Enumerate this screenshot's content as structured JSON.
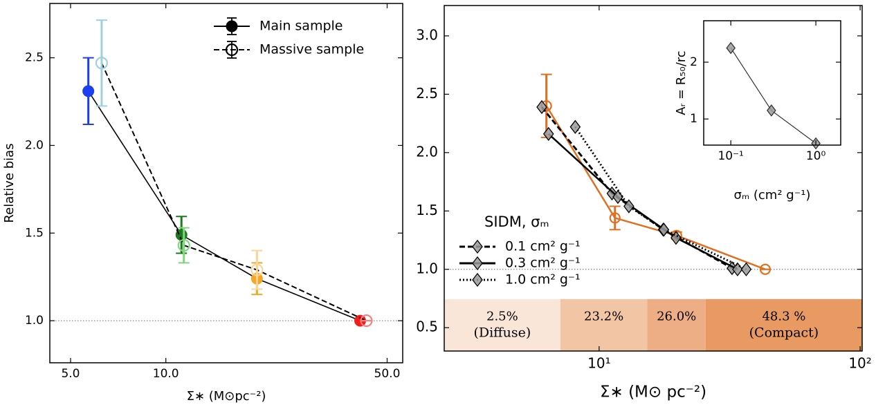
{
  "chart_data": [
    {
      "type": "scatter",
      "x_label": "Σ∗ (M⊙pc⁻²)",
      "y_label": "Relative bias",
      "xscale": "log",
      "xlim": [
        4.3,
        56
      ],
      "ylim": [
        0.76,
        2.81
      ],
      "xticks": [
        {
          "value": 5,
          "label": "5.0"
        },
        {
          "value": 10,
          "label": "10.0"
        },
        {
          "value": 50,
          "label": "50.0"
        }
      ],
      "yticks": [
        {
          "value": 1,
          "label": "1.0"
        },
        {
          "value": 1.5,
          "label": "1.5"
        },
        {
          "value": 2,
          "label": "2.0"
        },
        {
          "value": 2.5,
          "label": "2.5"
        }
      ],
      "reference_line": 1.0,
      "legend": "upper right",
      "series": [
        {
          "name": "Main sample",
          "color": "#000000",
          "linestyle": "solid",
          "marker": "filled-circle",
          "x": [
            5.69,
            11.2,
            19.4,
            41.1
          ],
          "values": [
            2.31,
            1.49,
            1.24,
            1.0
          ],
          "errors": [
            0.19,
            0.105,
            0.09,
            0
          ],
          "point_colors": [
            "#1c3ff0",
            "#1e7a1e",
            "#f5a623",
            "#f21d1d"
          ]
        },
        {
          "name": "Massive sample",
          "color": "#000000",
          "linestyle": "dashed",
          "marker": "open-circle",
          "x": [
            6.27,
            11.4,
            19.4,
            43.0
          ],
          "values": [
            2.47,
            1.43,
            1.29,
            1.0
          ],
          "errors": [
            0.245,
            0.1,
            0.11,
            0
          ],
          "point_colors": [
            "#9fd0e2",
            "#7fd67f",
            "#fbd49a",
            "#f58080"
          ]
        }
      ]
    },
    {
      "type": "scatter",
      "x_label": "Σ∗ (M⊙ pc⁻²)",
      "xscale": "log",
      "xlim": [
        2.55,
        101.8
      ],
      "ylim": [
        0.3,
        3.26
      ],
      "xticks": [
        {
          "value": 10,
          "label": "10¹"
        },
        {
          "value": 100,
          "label": "10²"
        }
      ],
      "yticks": [
        {
          "value": 0.5,
          "label": "0.5"
        },
        {
          "value": 1,
          "label": "1.0"
        },
        {
          "value": 1.5,
          "label": "1.5"
        },
        {
          "value": 2,
          "label": "2.0"
        },
        {
          "value": 2.5,
          "label": "2.5"
        },
        {
          "value": 3,
          "label": "3.0"
        }
      ],
      "reference_line": 1.0,
      "legend": "center left",
      "legend_title": "SIDM, σₘ",
      "band_edges": [
        7.1,
        15.3,
        25.6
      ],
      "band_top": 0.745,
      "band_colors": [
        "#f9e6d9",
        "#f2c6a5",
        "#edae85",
        "#e89a62"
      ],
      "band_labels": [
        [
          "2.5%",
          "(Diffuse)"
        ],
        [
          "23.2%"
        ],
        [
          "26.0%"
        ],
        [
          "48.3 %",
          "(Compact)"
        ]
      ],
      "series": [
        {
          "color": "#e07020",
          "linestyle": "solid",
          "marker": "open-circle",
          "x": [
            6.28,
            11.5,
            19.8,
            43.3
          ],
          "values": [
            2.4,
            1.44,
            1.29,
            1.0
          ],
          "errors": [
            0.27,
            0.1,
            0.03,
            0
          ]
        },
        {
          "name": "0.1 cm² g⁻¹",
          "color": "#000000",
          "linestyle": "dashed",
          "marker": "diamond",
          "x": [
            6.03,
            11.2,
            17.6,
            32.3
          ],
          "values": [
            2.39,
            1.65,
            1.34,
            1.01
          ]
        },
        {
          "name": "0.3 cm² g⁻¹",
          "color": "#000000",
          "linestyle": "solid",
          "marker": "diamond",
          "x": [
            6.4,
            11.8,
            19.7,
            33.9
          ],
          "values": [
            2.16,
            1.62,
            1.27,
            1.0
          ]
        },
        {
          "name": "1.0 cm² g⁻¹",
          "color": "#000000",
          "linestyle": "dotted",
          "marker": "diamond",
          "x": [
            8.1,
            13.0,
            17.7,
            36.6
          ],
          "values": [
            2.22,
            1.54,
            1.34,
            1.0
          ]
        }
      ]
    },
    {
      "type": "line",
      "x_label": "σₘ (cm² g⁻¹)",
      "y_label": "Aᵣ = R₅₀/rc",
      "xscale": "log",
      "xlim": [
        0.048,
        1.96
      ],
      "ylim": [
        0.54,
        2.73
      ],
      "xticks": [
        {
          "value": 0.1,
          "label": "10⁻¹"
        },
        {
          "value": 1,
          "label": "10⁰"
        }
      ],
      "yticks": [
        1,
        2
      ],
      "series": [
        {
          "color": "#333333",
          "linestyle": "solid",
          "marker": "diamond",
          "x": [
            0.1,
            0.3,
            1.0
          ],
          "values": [
            2.25,
            1.15,
            0.57
          ]
        }
      ]
    }
  ]
}
